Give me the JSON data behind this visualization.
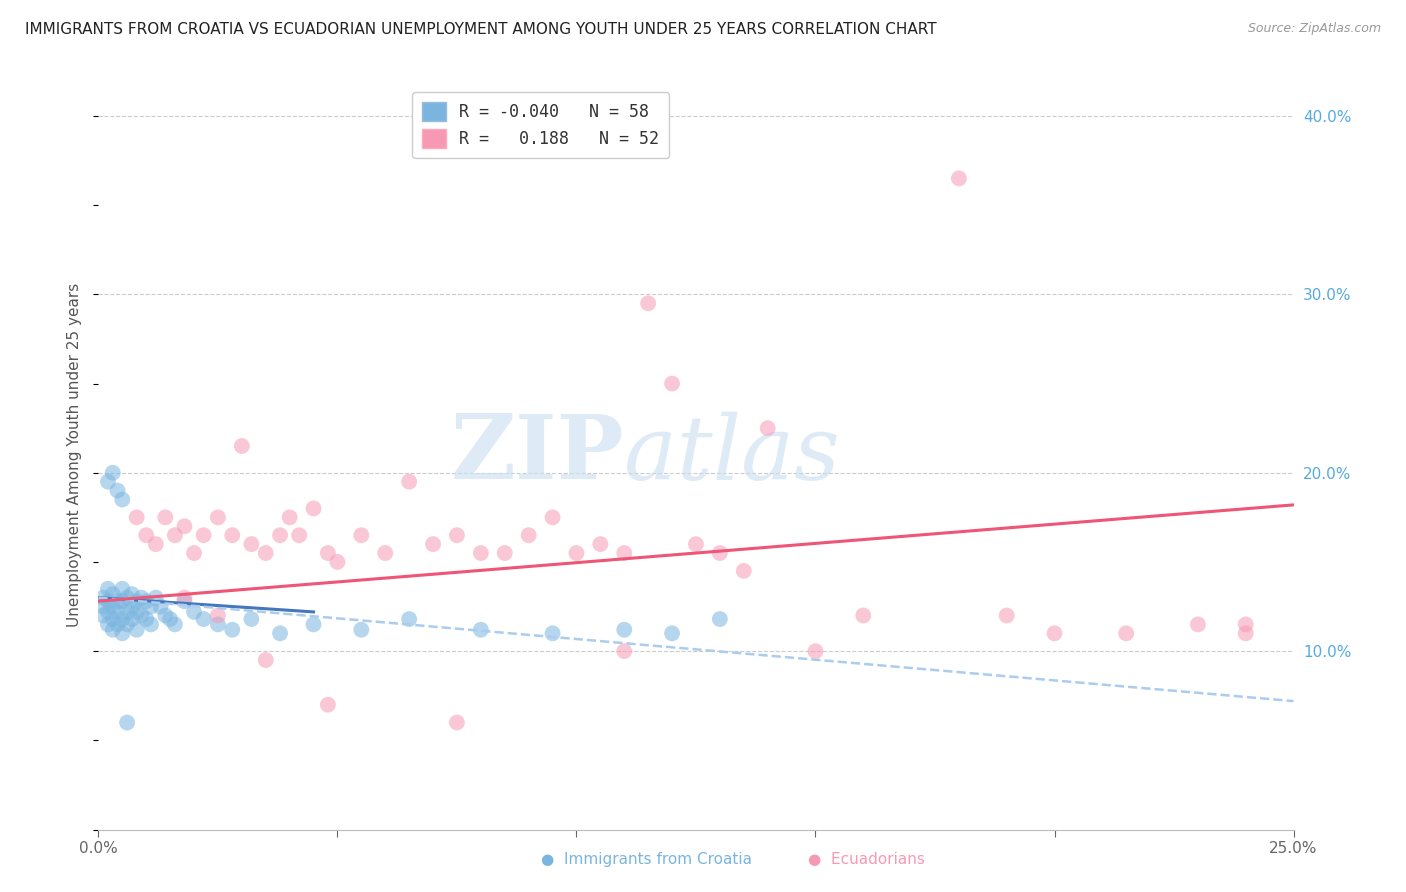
{
  "title": "IMMIGRANTS FROM CROATIA VS ECUADORIAN UNEMPLOYMENT AMONG YOUTH UNDER 25 YEARS CORRELATION CHART",
  "source": "Source: ZipAtlas.com",
  "ylabel": "Unemployment Among Youth under 25 years",
  "xlim": [
    0.0,
    0.25
  ],
  "ylim": [
    0.0,
    0.42
  ],
  "xtick_positions": [
    0.0,
    0.05,
    0.1,
    0.15,
    0.2,
    0.25
  ],
  "xticklabels": [
    "0.0%",
    "",
    "",
    "",
    "",
    "25.0%"
  ],
  "yticks_right": [
    0.1,
    0.2,
    0.3,
    0.4
  ],
  "ytick_labels_right": [
    "10.0%",
    "20.0%",
    "30.0%",
    "40.0%"
  ],
  "blue_scatter_x": [
    0.001,
    0.001,
    0.001,
    0.002,
    0.002,
    0.002,
    0.002,
    0.003,
    0.003,
    0.003,
    0.003,
    0.004,
    0.004,
    0.004,
    0.005,
    0.005,
    0.005,
    0.005,
    0.006,
    0.006,
    0.006,
    0.007,
    0.007,
    0.007,
    0.008,
    0.008,
    0.008,
    0.009,
    0.009,
    0.01,
    0.01,
    0.011,
    0.011,
    0.012,
    0.013,
    0.014,
    0.015,
    0.016,
    0.018,
    0.02,
    0.022,
    0.025,
    0.028,
    0.032,
    0.038,
    0.045,
    0.055,
    0.065,
    0.08,
    0.095,
    0.11,
    0.12,
    0.13,
    0.002,
    0.003,
    0.004,
    0.005,
    0.006
  ],
  "blue_scatter_y": [
    0.13,
    0.125,
    0.12,
    0.135,
    0.128,
    0.122,
    0.115,
    0.132,
    0.125,
    0.118,
    0.112,
    0.128,
    0.122,
    0.115,
    0.135,
    0.128,
    0.118,
    0.11,
    0.13,
    0.122,
    0.115,
    0.132,
    0.125,
    0.118,
    0.128,
    0.122,
    0.112,
    0.13,
    0.12,
    0.128,
    0.118,
    0.125,
    0.115,
    0.13,
    0.125,
    0.12,
    0.118,
    0.115,
    0.128,
    0.122,
    0.118,
    0.115,
    0.112,
    0.118,
    0.11,
    0.115,
    0.112,
    0.118,
    0.112,
    0.11,
    0.112,
    0.11,
    0.118,
    0.195,
    0.2,
    0.19,
    0.185,
    0.06
  ],
  "pink_scatter_x": [
    0.008,
    0.01,
    0.012,
    0.014,
    0.016,
    0.018,
    0.02,
    0.022,
    0.025,
    0.028,
    0.03,
    0.032,
    0.035,
    0.038,
    0.04,
    0.042,
    0.045,
    0.048,
    0.05,
    0.055,
    0.06,
    0.065,
    0.07,
    0.075,
    0.08,
    0.085,
    0.09,
    0.095,
    0.1,
    0.105,
    0.11,
    0.115,
    0.12,
    0.125,
    0.13,
    0.14,
    0.15,
    0.16,
    0.18,
    0.19,
    0.2,
    0.215,
    0.23,
    0.24,
    0.018,
    0.025,
    0.035,
    0.048,
    0.075,
    0.11,
    0.135,
    0.24
  ],
  "pink_scatter_y": [
    0.175,
    0.165,
    0.16,
    0.175,
    0.165,
    0.17,
    0.155,
    0.165,
    0.175,
    0.165,
    0.215,
    0.16,
    0.155,
    0.165,
    0.175,
    0.165,
    0.18,
    0.155,
    0.15,
    0.165,
    0.155,
    0.195,
    0.16,
    0.165,
    0.155,
    0.155,
    0.165,
    0.175,
    0.155,
    0.16,
    0.155,
    0.295,
    0.25,
    0.16,
    0.155,
    0.225,
    0.1,
    0.12,
    0.365,
    0.12,
    0.11,
    0.11,
    0.115,
    0.115,
    0.13,
    0.12,
    0.095,
    0.07,
    0.06,
    0.1,
    0.145,
    0.11
  ],
  "blue_solid_line_x": [
    0.0,
    0.045
  ],
  "blue_solid_line_y": [
    0.13,
    0.122
  ],
  "blue_dash_line_x": [
    0.0,
    0.25
  ],
  "blue_dash_line_y": [
    0.13,
    0.072
  ],
  "pink_solid_line_x": [
    0.0,
    0.25
  ],
  "pink_solid_line_y": [
    0.128,
    0.182
  ],
  "blue_dot_color": "#7ab5e0",
  "pink_dot_color": "#f799b5",
  "blue_line_color": "#4477bb",
  "pink_line_color": "#ee5577",
  "blue_dash_color": "#aaccee",
  "background_color": "#ffffff",
  "grid_color": "#cccccc",
  "title_fontsize": 11,
  "axis_label_fontsize": 11,
  "tick_fontsize": 11,
  "watermark_zip": "ZIP",
  "watermark_atlas": "atlas"
}
